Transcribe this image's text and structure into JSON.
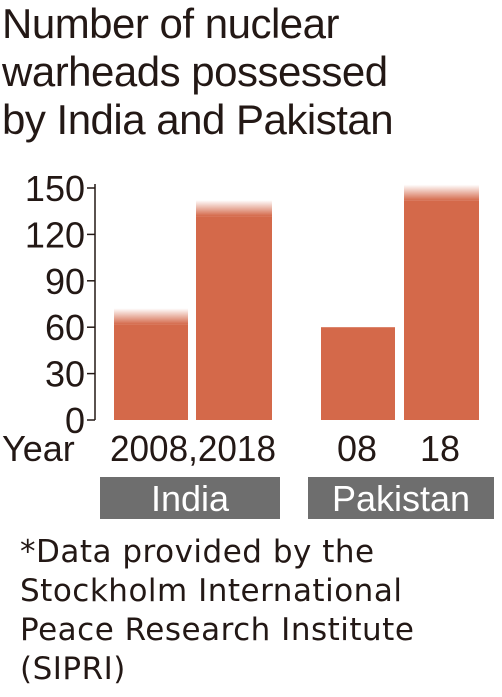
{
  "title_lines": [
    "Number of nuclear",
    "warheads possessed",
    "by India and Pakistan"
  ],
  "note_lines": [
    "*Data provided by the",
    "Stockholm International",
    "Peace Research Institute",
    "(SIPRI)"
  ],
  "colors": {
    "bar": "#d4694a",
    "group_band": "#6e6e6e",
    "axis": "#231815",
    "text": "#231815"
  },
  "chart_data": {
    "type": "bar",
    "xlabel": "Year",
    "ylim": [
      0,
      150
    ],
    "yticks": [
      0,
      30,
      60,
      90,
      120,
      150
    ],
    "groups": [
      {
        "name": "India",
        "year_label": "2008,2018",
        "bars": [
          {
            "year": "2008",
            "value": 67,
            "fuzzy_top": true
          },
          {
            "year": "2018",
            "value": 137,
            "fuzzy_top": true
          }
        ]
      },
      {
        "name": "Pakistan",
        "year_labels": [
          "08",
          "18"
        ],
        "bars": [
          {
            "year": "08",
            "value": 60,
            "fuzzy_top": false
          },
          {
            "year": "18",
            "value": 147,
            "fuzzy_top": true
          }
        ]
      }
    ]
  }
}
